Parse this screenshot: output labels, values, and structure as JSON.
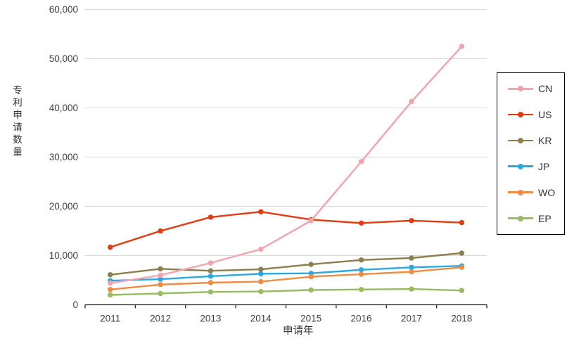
{
  "chart_data": {
    "type": "line",
    "title": "",
    "xlabel": "申请年",
    "ylabel": "专利申请数量",
    "categories": [
      "2011",
      "2012",
      "2013",
      "2014",
      "2015",
      "2016",
      "2017",
      "2018"
    ],
    "ylim": [
      0,
      60000
    ],
    "ytick_values": [
      0,
      10000,
      20000,
      30000,
      40000,
      50000,
      60000
    ],
    "ytick_labels": [
      "0",
      "10,000",
      "20,000",
      "30,000",
      "40,000",
      "50,000",
      "60,000"
    ],
    "grid": "horizontal",
    "legend_position": "right",
    "series": [
      {
        "name": "CN",
        "color": "#F4A3AD",
        "values": [
          4400,
          6000,
          8500,
          11300,
          17100,
          29100,
          41300,
          52500
        ]
      },
      {
        "name": "US",
        "color": "#E5390E",
        "values": [
          11700,
          15000,
          17800,
          18900,
          17300,
          16600,
          17100,
          16700
        ]
      },
      {
        "name": "KR",
        "color": "#8C7E4D",
        "values": [
          6100,
          7300,
          6900,
          7200,
          8200,
          9100,
          9500,
          10500
        ]
      },
      {
        "name": "JP",
        "color": "#29A9E1",
        "values": [
          4900,
          5200,
          5800,
          6300,
          6400,
          7100,
          7600,
          7900
        ]
      },
      {
        "name": "WO",
        "color": "#EF8C44",
        "values": [
          3100,
          4100,
          4500,
          4700,
          5700,
          6200,
          6700,
          7600
        ]
      },
      {
        "name": "EP",
        "color": "#96BC5F",
        "values": [
          2000,
          2300,
          2600,
          2700,
          3000,
          3100,
          3200,
          2900
        ]
      }
    ],
    "draw_order": [
      "EP",
      "JP",
      "WO",
      "KR",
      "US",
      "CN"
    ]
  },
  "colors": {
    "background": "#FFFFFF",
    "grid": "#D9D9D9",
    "axis": "#262626",
    "tick_text": "#404040",
    "legend_border": "#000000"
  }
}
